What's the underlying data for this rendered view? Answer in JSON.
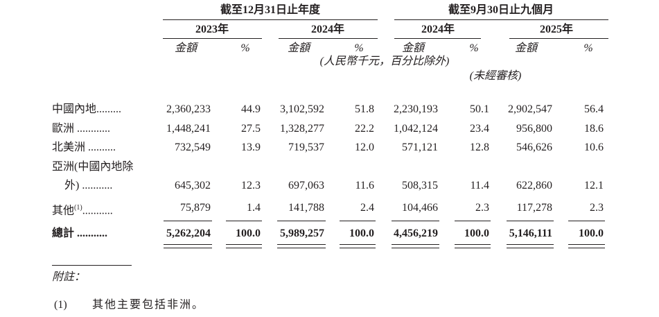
{
  "header": {
    "group1": "截至12月31日止年度",
    "group2": "截至9月30日止九個月",
    "years": [
      "2023年",
      "2024年",
      "2024年",
      "2025年"
    ],
    "amount_label": "金額",
    "pct_label": "%",
    "unit_note": "(人民幣千元，百分比除外)",
    "unaudited_note": "(未經審核)"
  },
  "rows": [
    {
      "label": "中國內地.........",
      "values": [
        "2,360,233",
        "44.9",
        "3,102,592",
        "51.8",
        "2,230,193",
        "50.1",
        "2,902,547",
        "56.4"
      ]
    },
    {
      "label": "歐洲 ............",
      "values": [
        "1,448,241",
        "27.5",
        "1,328,277",
        "22.2",
        "1,042,124",
        "23.4",
        "956,800",
        "18.6"
      ]
    },
    {
      "label": "北美洲 ..........",
      "values": [
        "732,549",
        "13.9",
        "719,537",
        "12.0",
        "571,121",
        "12.8",
        "546,626",
        "10.6"
      ]
    },
    {
      "label": "亞洲(中國內地除",
      "label2": "外) ...........",
      "values": [
        "645,302",
        "12.3",
        "697,063",
        "11.6",
        "508,315",
        "11.4",
        "622,860",
        "12.1"
      ]
    },
    {
      "label": "其他",
      "sup": "(1)",
      "dots": "...........",
      "values": [
        "75,879",
        "1.4",
        "141,788",
        "2.4",
        "104,466",
        "2.3",
        "117,278",
        "2.3"
      ]
    }
  ],
  "total": {
    "label": "總計 ...........",
    "values": [
      "5,262,204",
      "100.0",
      "5,989,257",
      "100.0",
      "4,456,219",
      "100.0",
      "5,146,111",
      "100.0"
    ]
  },
  "notes": {
    "heading": "附註：",
    "items": [
      {
        "marker": "(1)",
        "text": "其他主要包括非洲。"
      }
    ]
  }
}
